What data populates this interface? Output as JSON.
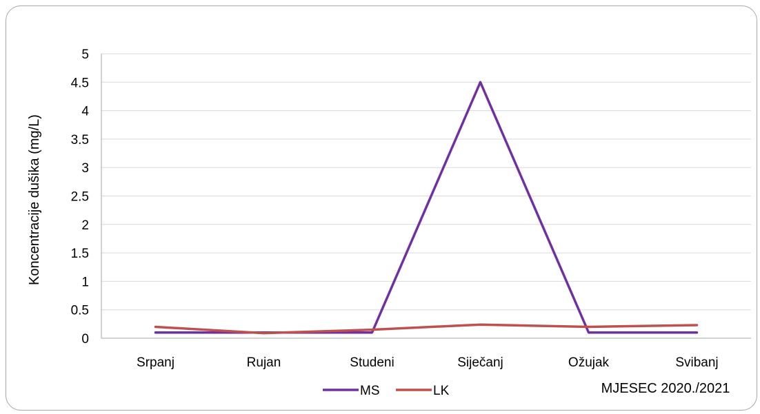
{
  "chart_data": {
    "type": "line",
    "title": "",
    "xlabel": "MJESEC 2020./2021",
    "ylabel": "Koncentracije dušika (mg/L)",
    "categories": [
      "Srpanj",
      "Rujan",
      "Studeni",
      "Siječanj",
      "Ožujak",
      "Svibanj"
    ],
    "ylim": [
      0,
      5
    ],
    "yticks": [
      "0",
      "0.5",
      "1",
      "1.5",
      "2",
      "2.5",
      "3",
      "3.5",
      "4",
      "4.5",
      "5"
    ],
    "grid": true,
    "legend_position": "bottom",
    "series": [
      {
        "name": "MS",
        "color": "#7030a0",
        "values": [
          0.1,
          0.1,
          0.1,
          4.5,
          0.1,
          0.1
        ]
      },
      {
        "name": "LK",
        "color": "#c0504d",
        "values": [
          0.2,
          0.09,
          0.15,
          0.24,
          0.2,
          0.23
        ]
      }
    ]
  }
}
